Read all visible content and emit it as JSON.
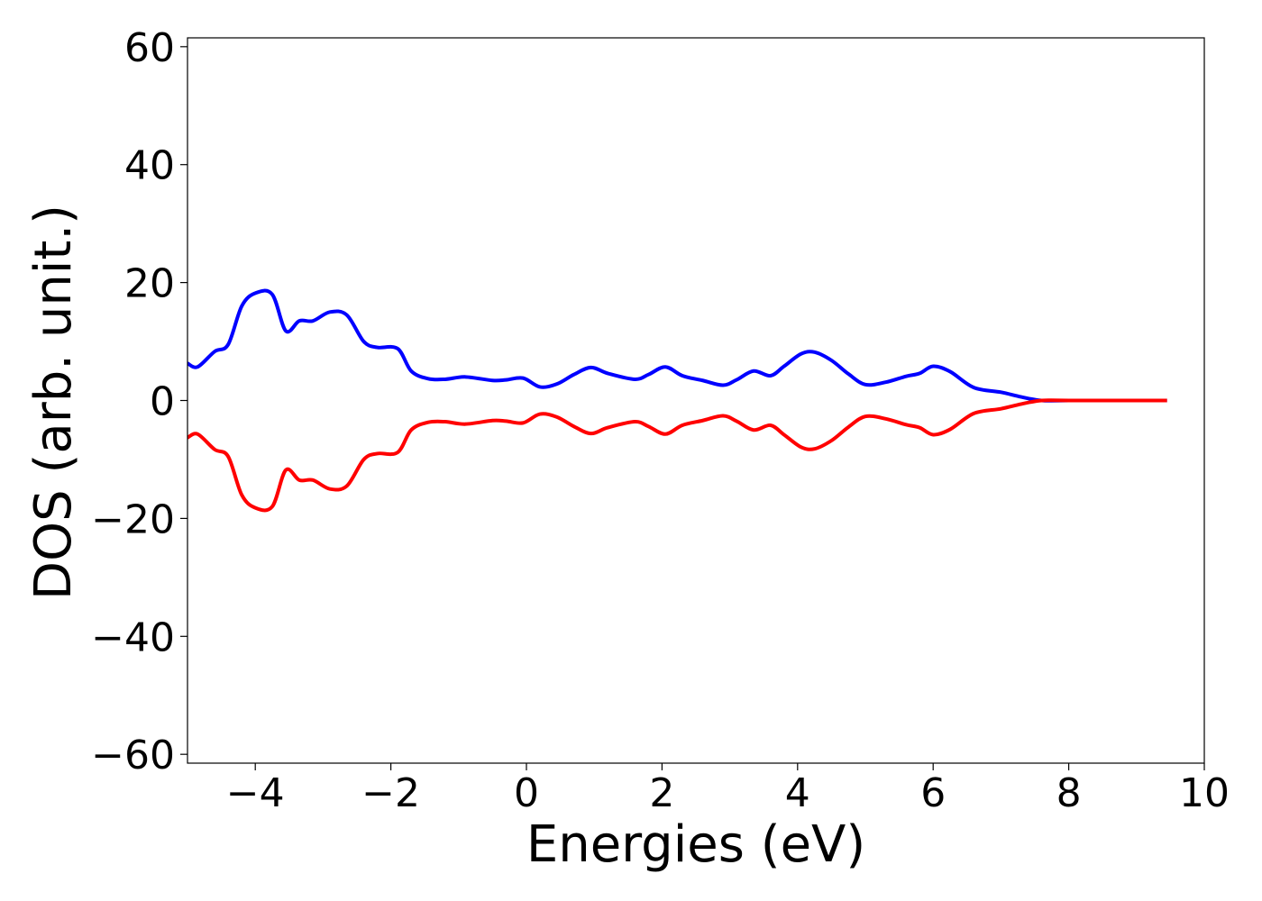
{
  "chart_data": {
    "type": "line",
    "xlabel": "Energies (eV)",
    "ylabel": "DOS (arb. unit.)",
    "xlim": [
      -5,
      10
    ],
    "ylim": [
      -61.5,
      61.5
    ],
    "xticks": [
      -4,
      -2,
      0,
      2,
      4,
      6,
      8,
      10
    ],
    "xtick_labels": [
      "−4",
      "−2",
      "0",
      "2",
      "4",
      "6",
      "8",
      "10"
    ],
    "yticks": [
      60,
      40,
      20,
      0,
      -20,
      -40,
      -60
    ],
    "ytick_labels": [
      "60",
      "40",
      "20",
      "0",
      "−20",
      "−40",
      "−60"
    ],
    "grid": false,
    "legend": "none",
    "series": [
      {
        "color": "#0000ff",
        "x": [
          -5.0,
          -4.85,
          -4.6,
          -4.4,
          -4.2,
          -4.0,
          -3.75,
          -3.55,
          -3.35,
          -3.15,
          -2.9,
          -2.65,
          -2.4,
          -2.2,
          -1.9,
          -1.7,
          -1.45,
          -1.2,
          -0.9,
          -0.5,
          -0.3,
          -0.05,
          0.2,
          0.45,
          0.7,
          0.95,
          1.2,
          1.6,
          1.8,
          2.05,
          2.3,
          2.6,
          2.9,
          3.1,
          3.35,
          3.6,
          3.8,
          4.05,
          4.25,
          4.5,
          4.75,
          5.0,
          5.3,
          5.6,
          5.8,
          6.0,
          6.25,
          6.6,
          7.0,
          7.3,
          7.6,
          8.0,
          9.45
        ],
        "y": [
          6.3,
          5.7,
          8.3,
          9.5,
          16.0,
          18.2,
          18.0,
          11.8,
          13.5,
          13.5,
          15.0,
          14.5,
          10.0,
          9.0,
          8.8,
          5.0,
          3.7,
          3.6,
          4.0,
          3.4,
          3.5,
          3.8,
          2.3,
          2.8,
          4.4,
          5.6,
          4.6,
          3.6,
          4.4,
          5.7,
          4.2,
          3.4,
          2.6,
          3.5,
          5.0,
          4.2,
          5.8,
          7.9,
          8.2,
          6.8,
          4.5,
          2.7,
          3.1,
          4.1,
          4.6,
          5.8,
          4.9,
          2.2,
          1.4,
          0.6,
          0.0,
          0.0,
          0.0
        ]
      },
      {
        "color": "#ff0000",
        "x": [
          -5.0,
          -4.85,
          -4.6,
          -4.4,
          -4.2,
          -4.0,
          -3.75,
          -3.55,
          -3.35,
          -3.15,
          -2.9,
          -2.65,
          -2.4,
          -2.2,
          -1.9,
          -1.7,
          -1.45,
          -1.2,
          -0.9,
          -0.5,
          -0.3,
          -0.05,
          0.2,
          0.45,
          0.7,
          0.95,
          1.2,
          1.6,
          1.8,
          2.05,
          2.3,
          2.6,
          2.9,
          3.1,
          3.35,
          3.6,
          3.8,
          4.05,
          4.25,
          4.5,
          4.75,
          5.0,
          5.3,
          5.6,
          5.8,
          6.0,
          6.25,
          6.6,
          7.0,
          7.3,
          7.6,
          8.0,
          9.45
        ],
        "y": [
          -6.3,
          -5.7,
          -8.3,
          -9.5,
          -16.0,
          -18.2,
          -18.0,
          -11.8,
          -13.5,
          -13.5,
          -15.0,
          -14.5,
          -10.0,
          -9.0,
          -8.8,
          -5.0,
          -3.7,
          -3.6,
          -4.0,
          -3.4,
          -3.5,
          -3.8,
          -2.3,
          -2.8,
          -4.4,
          -5.6,
          -4.6,
          -3.6,
          -4.4,
          -5.7,
          -4.2,
          -3.4,
          -2.6,
          -3.5,
          -5.0,
          -4.2,
          -5.8,
          -7.9,
          -8.2,
          -6.8,
          -4.5,
          -2.7,
          -3.1,
          -4.1,
          -4.6,
          -5.8,
          -4.9,
          -2.2,
          -1.4,
          -0.6,
          0.0,
          0.0,
          0.0
        ]
      }
    ]
  }
}
